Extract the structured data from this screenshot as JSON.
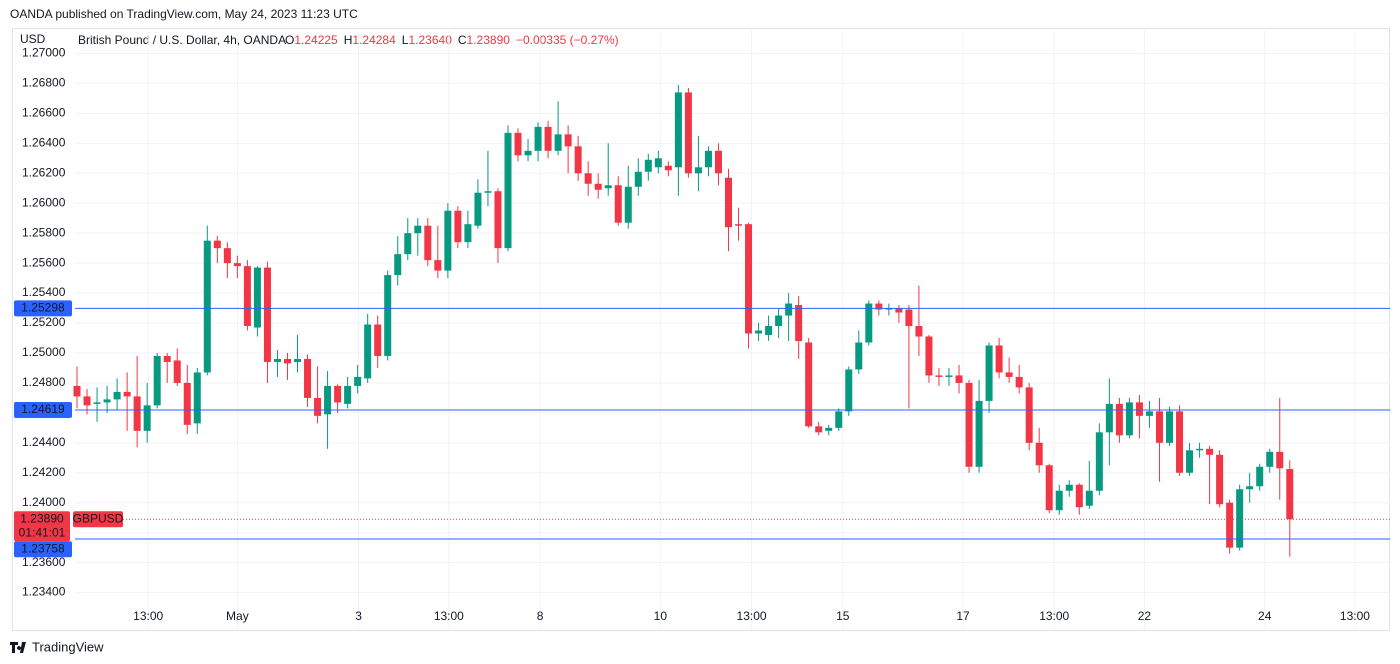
{
  "header": {
    "published": "OANDA published on TradingView.com, May 24, 2023 11:23 UTC"
  },
  "footer": {
    "brand": "TradingView"
  },
  "chart_data": {
    "type": "candlestick",
    "legend": {
      "title": "British Pound / U.S. Dollar, 4h, OANDA",
      "items": [
        {
          "key": "O",
          "value": "1.24225"
        },
        {
          "key": "H",
          "value": "1.24284"
        },
        {
          "key": "L",
          "value": "1.23640"
        },
        {
          "key": "C",
          "value": "1.23890"
        }
      ],
      "change": "−0.00335 (−0.27%)"
    },
    "y_axis_label": "USD",
    "up_color": "#089981",
    "down_color": "#f23645",
    "open": [
      1.2478,
      1.2471,
      1.2466,
      1.2467,
      1.2469,
      1.2474,
      1.2471,
      1.2448,
      1.2465,
      1.2498,
      1.2495,
      1.248,
      1.2453,
      1.2487,
      1.2575,
      1.257,
      1.256,
      1.2558,
      1.2517,
      1.2557,
      1.2494,
      1.2496,
      1.2494,
      1.2496,
      1.247,
      1.2459,
      1.2478,
      1.2466,
      1.2478,
      1.2483,
      1.2519,
      1.2498,
      1.2552,
      1.2566,
      1.258,
      1.2585,
      1.2562,
      1.2555,
      1.2595,
      1.2574,
      1.2585,
      1.2607,
      1.2608,
      1.257,
      1.2647,
      1.2632,
      1.2635,
      1.2651,
      1.2635,
      1.2646,
      1.2638,
      1.262,
      1.2613,
      1.261,
      1.2612,
      1.2587,
      1.2611,
      1.2621,
      1.2624,
      1.2625,
      1.2624,
      1.2674,
      1.262,
      1.2624,
      1.2635,
      1.2617,
      1.2586,
      1.2586,
      1.2513,
      1.2512,
      1.2518,
      1.2525,
      1.2532,
      1.2507,
      1.2451,
      1.2448,
      1.245,
      1.2461,
      1.2489,
      1.2507,
      1.2533,
      1.2529,
      1.253,
      1.2529,
      1.2518,
      1.2511,
      1.2485,
      1.2484,
      1.2485,
      1.248,
      1.2424,
      1.2468,
      1.2505,
      1.2487,
      1.2484,
      1.2477,
      1.244,
      1.2425,
      1.2395,
      1.2408,
      1.2412,
      1.2398,
      1.2408,
      1.2447,
      1.2466,
      1.2445,
      1.2467,
      1.2458,
      1.2461,
      1.244,
      1.2461,
      1.242,
      1.2435,
      1.2436,
      1.2432,
      1.24,
      1.237,
      1.2409,
      1.2411,
      1.2424,
      1.2434,
      1.24225
    ],
    "high": [
      1.2491,
      1.2476,
      1.2477,
      1.2478,
      1.2483,
      1.2487,
      1.2498,
      1.248,
      1.25,
      1.25,
      1.2503,
      1.2492,
      1.249,
      1.2585,
      1.2578,
      1.2574,
      1.2565,
      1.2562,
      1.2558,
      1.2561,
      1.2502,
      1.25,
      1.2512,
      1.2499,
      1.2491,
      1.2488,
      1.2479,
      1.2484,
      1.2492,
      1.2526,
      1.2525,
      1.2555,
      1.2578,
      1.259,
      1.259,
      1.259,
      1.2585,
      1.26,
      1.2598,
      1.2595,
      1.2616,
      1.2635,
      1.261,
      1.2652,
      1.265,
      1.2643,
      1.2654,
      1.2655,
      1.2668,
      1.2652,
      1.2645,
      1.2628,
      1.262,
      1.264,
      1.2618,
      1.2625,
      1.263,
      1.2633,
      1.2635,
      1.2628,
      1.2679,
      1.2677,
      1.2645,
      1.2638,
      1.264,
      1.2623,
      1.2597,
      1.2587,
      1.252,
      1.2525,
      1.253,
      1.254,
      1.2538,
      1.251,
      1.2454,
      1.2452,
      1.2463,
      1.2491,
      1.2515,
      1.2535,
      1.2535,
      1.2533,
      1.2532,
      1.2532,
      1.2545,
      1.2512,
      1.249,
      1.249,
      1.2492,
      1.2482,
      1.2482,
      1.2507,
      1.251,
      1.2497,
      1.2492,
      1.248,
      1.245,
      1.2426,
      1.2412,
      1.2415,
      1.2413,
      1.2428,
      1.2453,
      1.2483,
      1.247,
      1.247,
      1.2472,
      1.2468,
      1.247,
      1.2464,
      1.2465,
      1.244,
      1.244,
      1.2438,
      1.2435,
      1.2402,
      1.2412,
      1.242,
      1.2426,
      1.2436,
      1.247,
      1.24284
    ],
    "low": [
      1.2463,
      1.2459,
      1.2454,
      1.246,
      1.2462,
      1.2448,
      1.2437,
      1.244,
      1.2463,
      1.248,
      1.2478,
      1.2446,
      1.2446,
      1.2485,
      1.256,
      1.255,
      1.255,
      1.2515,
      1.2511,
      1.248,
      1.2484,
      1.2482,
      1.2487,
      1.2464,
      1.2453,
      1.2436,
      1.246,
      1.2463,
      1.2473,
      1.248,
      1.249,
      1.2495,
      1.2545,
      1.2562,
      1.2565,
      1.2558,
      1.255,
      1.255,
      1.257,
      1.257,
      1.2583,
      1.2598,
      1.256,
      1.2568,
      1.2628,
      1.2628,
      1.2628,
      1.263,
      1.2632,
      1.262,
      1.2615,
      1.2605,
      1.2603,
      1.2605,
      1.2585,
      1.2583,
      1.2605,
      1.2615,
      1.262,
      1.2618,
      1.2605,
      1.2617,
      1.2608,
      1.2618,
      1.2612,
      1.2568,
      1.2575,
      1.2503,
      1.2508,
      1.2508,
      1.251,
      1.2508,
      1.2496,
      1.245,
      1.2445,
      1.2445,
      1.2448,
      1.2458,
      1.2486,
      1.2505,
      1.2525,
      1.2525,
      1.252,
      1.2463,
      1.2498,
      1.248,
      1.2478,
      1.2478,
      1.2473,
      1.242,
      1.242,
      1.246,
      1.2483,
      1.248,
      1.2473,
      1.2435,
      1.242,
      1.2393,
      1.2392,
      1.2404,
      1.2392,
      1.2396,
      1.2405,
      1.2425,
      1.244,
      1.2443,
      1.2443,
      1.245,
      1.2414,
      1.2438,
      1.2418,
      1.2418,
      1.243,
      1.2399,
      1.2397,
      1.2366,
      1.2368,
      1.24,
      1.2408,
      1.242,
      1.2402,
      1.2364
    ],
    "close": [
      1.2471,
      1.2465,
      1.2467,
      1.2469,
      1.2474,
      1.2471,
      1.2448,
      1.2465,
      1.2498,
      1.2494,
      1.248,
      1.2452,
      1.2487,
      1.2575,
      1.257,
      1.256,
      1.2558,
      1.2518,
      1.2557,
      1.2494,
      1.2496,
      1.2493,
      1.2496,
      1.247,
      1.2458,
      1.2478,
      1.2467,
      1.2478,
      1.2484,
      1.2519,
      1.2498,
      1.2552,
      1.2566,
      1.258,
      1.2585,
      1.2562,
      1.2555,
      1.2595,
      1.2574,
      1.2586,
      1.2607,
      1.2608,
      1.257,
      1.2647,
      1.2632,
      1.2635,
      1.2651,
      1.2635,
      1.2646,
      1.2638,
      1.262,
      1.2613,
      1.2609,
      1.2612,
      1.2587,
      1.2611,
      1.2621,
      1.2629,
      1.263,
      1.2622,
      1.2674,
      1.262,
      1.2624,
      1.2635,
      1.262,
      1.2584,
      1.2585,
      1.2513,
      1.2515,
      1.2518,
      1.2525,
      1.2533,
      1.2508,
      1.2451,
      1.2447,
      1.245,
      1.2461,
      1.2489,
      1.2507,
      1.2533,
      1.2529,
      1.253,
      1.2527,
      1.2518,
      1.2511,
      1.2485,
      1.2484,
      1.2485,
      1.248,
      1.2424,
      1.2468,
      1.2505,
      1.2487,
      1.2484,
      1.2477,
      1.244,
      1.2425,
      1.2395,
      1.2408,
      1.2412,
      1.2397,
      1.2408,
      1.2447,
      1.2466,
      1.2445,
      1.2467,
      1.2458,
      1.2461,
      1.244,
      1.2461,
      1.242,
      1.2435,
      1.2436,
      1.2432,
      1.2399,
      1.237,
      1.2409,
      1.2411,
      1.2424,
      1.2434,
      1.2423,
      1.2389
    ],
    "xlim": [
      -0.2,
      131
    ],
    "xticks": [
      {
        "value": 7.1,
        "label": "13:00"
      },
      {
        "value": 16,
        "label": "May"
      },
      {
        "value": 28.1,
        "label": "3"
      },
      {
        "value": 37.1,
        "label": "13:00"
      },
      {
        "value": 46.2,
        "label": "8"
      },
      {
        "value": 58.2,
        "label": "10"
      },
      {
        "value": 67.3,
        "label": "13:00"
      },
      {
        "value": 76.4,
        "label": "15"
      },
      {
        "value": 88.4,
        "label": "17"
      },
      {
        "value": 97.5,
        "label": "13:00"
      },
      {
        "value": 106.5,
        "label": "22"
      },
      {
        "value": 118.5,
        "label": "24"
      },
      {
        "value": 127.5,
        "label": "13:00"
      }
    ],
    "ylim": [
      1.2315,
      1.2709
    ],
    "yticks": [
      {
        "value": 1.234,
        "label": "1.23400"
      },
      {
        "value": 1.236,
        "label": "1.23600"
      },
      {
        "value": 1.238,
        "label": "1.23800"
      },
      {
        "value": 1.24,
        "label": "1.24000"
      },
      {
        "value": 1.242,
        "label": "1.24200"
      },
      {
        "value": 1.244,
        "label": "1.24400"
      },
      {
        "value": 1.246,
        "label": "1.24600"
      },
      {
        "value": 1.248,
        "label": "1.24800"
      },
      {
        "value": 1.25,
        "label": "1.25000"
      },
      {
        "value": 1.252,
        "label": "1.25200"
      },
      {
        "value": 1.254,
        "label": "1.25400"
      },
      {
        "value": 1.256,
        "label": "1.25600"
      },
      {
        "value": 1.258,
        "label": "1.25800"
      },
      {
        "value": 1.26,
        "label": "1.26000"
      },
      {
        "value": 1.262,
        "label": "1.26200"
      },
      {
        "value": 1.264,
        "label": "1.26400"
      },
      {
        "value": 1.266,
        "label": "1.26600"
      },
      {
        "value": 1.268,
        "label": "1.26800"
      },
      {
        "value": 1.27,
        "label": "1.27000"
      }
    ],
    "grid": true,
    "hlines": [
      {
        "value": 1.25298,
        "label": "1.25298",
        "color": "#2962ff"
      },
      {
        "value": 1.24619,
        "label": "1.24619",
        "color": "#2962ff"
      },
      {
        "value": 1.23758,
        "label": "1.23758",
        "color": "#2962ff"
      }
    ],
    "last_price": {
      "value": 1.2389,
      "label": "1.23890",
      "symbol": "GBPUSD",
      "countdown": "01:41:01",
      "color": "#f23645"
    }
  }
}
